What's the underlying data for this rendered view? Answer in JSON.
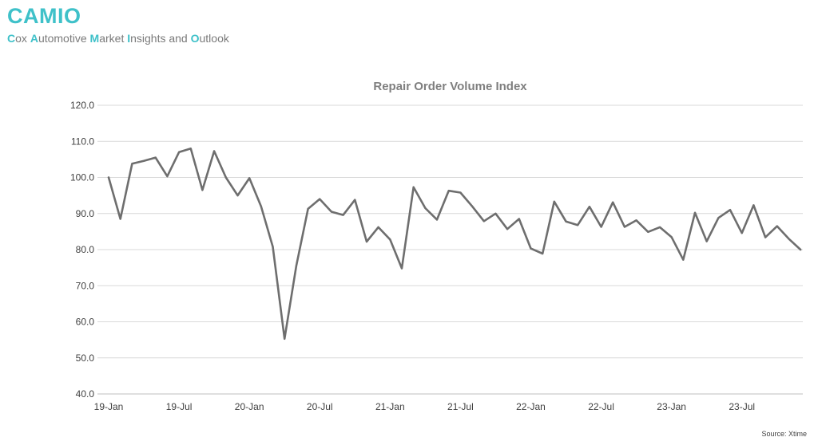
{
  "header": {
    "title": "CAMIO",
    "subtitle_parts": [
      {
        "hl": "C",
        "rest": "ox "
      },
      {
        "hl": "A",
        "rest": "utomotive "
      },
      {
        "hl": "M",
        "rest": "arket "
      },
      {
        "hl": "I",
        "rest": "nsights and "
      },
      {
        "hl": "O",
        "rest": "utlook"
      }
    ]
  },
  "source": "Source: Xtime",
  "colors": {
    "brand": "#3fc1c9",
    "series": "#6e6e6e"
  },
  "chart_data": {
    "type": "line",
    "title": "Repair Order Volume Index",
    "xlabel": "",
    "ylabel": "",
    "ylim": [
      40,
      120
    ],
    "yticks": [
      "40.0",
      "50.0",
      "60.0",
      "70.0",
      "80.0",
      "90.0",
      "100.0",
      "110.0",
      "120.0"
    ],
    "xtick_labels": [
      "19-Jan",
      "19-Jul",
      "20-Jan",
      "20-Jul",
      "21-Jan",
      "21-Jul",
      "22-Jan",
      "22-Jul",
      "23-Jan",
      "23-Jul"
    ],
    "grid": true,
    "legend": "none",
    "series": [
      {
        "values": [
          100.0,
          88.5,
          103.8,
          104.6,
          105.5,
          100.3,
          107.0,
          108.0,
          96.5,
          107.3,
          100.0,
          95.0,
          99.8,
          92.0,
          80.8,
          55.3,
          75.5,
          91.3,
          94.0,
          90.5,
          89.6,
          93.8,
          82.2,
          86.2,
          82.8,
          74.8,
          97.3,
          91.5,
          88.3,
          96.3,
          95.8,
          92.0,
          87.9,
          90.0,
          85.7,
          88.5,
          80.3,
          78.9,
          93.3,
          87.8,
          86.8,
          91.9,
          86.3,
          93.1,
          86.3,
          88.1,
          84.9,
          86.2,
          83.5,
          77.2,
          90.2,
          82.3,
          88.8,
          91.0,
          84.6,
          92.3,
          83.4,
          86.5,
          83.0,
          80.0
        ]
      }
    ]
  }
}
